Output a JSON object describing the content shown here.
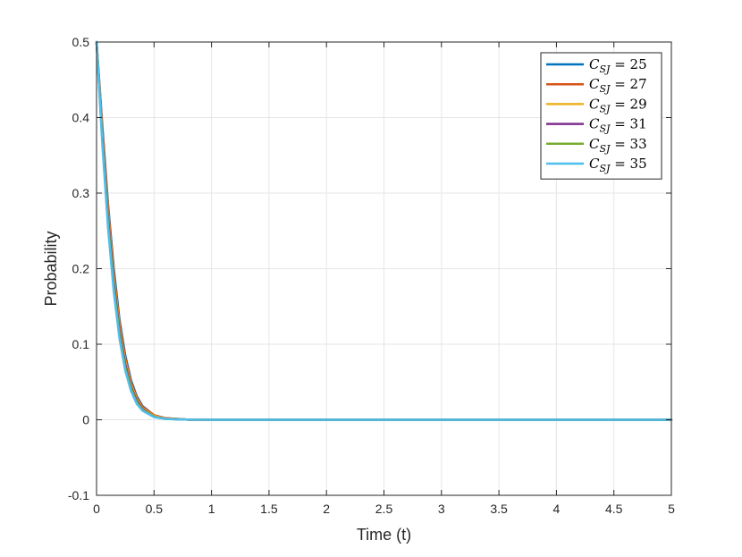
{
  "chart_data": {
    "type": "line",
    "title": "",
    "xlabel": "Time (t)",
    "ylabel": "Probability",
    "xlim": [
      0,
      5
    ],
    "ylim": [
      -0.1,
      0.5
    ],
    "xticks": [
      0,
      0.5,
      1,
      1.5,
      2,
      2.5,
      3,
      3.5,
      4,
      4.5,
      5
    ],
    "xtick_labels": [
      "0",
      "0.5",
      "1",
      "1.5",
      "2",
      "2.5",
      "3",
      "3.5",
      "4",
      "4.5",
      "5"
    ],
    "yticks": [
      -0.1,
      0,
      0.1,
      0.2,
      0.3,
      0.4,
      0.5
    ],
    "ytick_labels": [
      "-0.1",
      "0",
      "0.1",
      "0.2",
      "0.3",
      "0.4",
      "0.5"
    ],
    "grid": true,
    "legend_position": "top-right",
    "series": [
      {
        "name": "C_SJ = 25",
        "name_main": "C",
        "name_sub": "SJ",
        "name_rest": " = 25",
        "color": "#0072BD",
        "x": [
          0,
          0.05,
          0.1,
          0.15,
          0.2,
          0.25,
          0.3,
          0.35,
          0.4,
          0.5,
          0.6,
          0.8,
          1,
          2,
          3,
          4,
          5
        ],
        "y": [
          0.5,
          0.39,
          0.285,
          0.2,
          0.132,
          0.085,
          0.052,
          0.031,
          0.018,
          0.006,
          0.002,
          0.0002,
          0,
          0,
          0,
          0,
          0
        ]
      },
      {
        "name": "C_SJ = 27",
        "name_main": "C",
        "name_sub": "SJ",
        "name_rest": " = 27",
        "color": "#D95319",
        "x": [
          0,
          0.05,
          0.1,
          0.15,
          0.2,
          0.25,
          0.3,
          0.35,
          0.4,
          0.5,
          0.6,
          0.8,
          1,
          2,
          3,
          4,
          5
        ],
        "y": [
          0.5,
          0.385,
          0.28,
          0.193,
          0.127,
          0.081,
          0.049,
          0.029,
          0.017,
          0.006,
          0.002,
          0.0002,
          0,
          0,
          0,
          0,
          0
        ]
      },
      {
        "name": "C_SJ = 29",
        "name_main": "C",
        "name_sub": "SJ",
        "name_rest": " = 29",
        "color": "#EDB120",
        "x": [
          0,
          0.05,
          0.1,
          0.15,
          0.2,
          0.25,
          0.3,
          0.35,
          0.4,
          0.5,
          0.6,
          0.8,
          1,
          2,
          3,
          4,
          5
        ],
        "y": [
          0.5,
          0.38,
          0.273,
          0.187,
          0.122,
          0.077,
          0.046,
          0.027,
          0.015,
          0.005,
          0.0015,
          0.0001,
          0,
          0,
          0,
          0,
          0
        ]
      },
      {
        "name": "C_SJ = 31",
        "name_main": "C",
        "name_sub": "SJ",
        "name_rest": " = 31",
        "color": "#7E2F8E",
        "x": [
          0,
          0.05,
          0.1,
          0.15,
          0.2,
          0.25,
          0.3,
          0.35,
          0.4,
          0.5,
          0.6,
          0.8,
          1,
          2,
          3,
          4,
          5
        ],
        "y": [
          0.5,
          0.375,
          0.267,
          0.181,
          0.117,
          0.073,
          0.043,
          0.025,
          0.014,
          0.004,
          0.0012,
          0.0001,
          0,
          0,
          0,
          0,
          0
        ]
      },
      {
        "name": "C_SJ = 33",
        "name_main": "C",
        "name_sub": "SJ",
        "name_rest": " = 33",
        "color": "#77AC30",
        "x": [
          0,
          0.05,
          0.1,
          0.15,
          0.2,
          0.25,
          0.3,
          0.35,
          0.4,
          0.5,
          0.6,
          0.8,
          1,
          2,
          3,
          4,
          5
        ],
        "y": [
          0.5,
          0.37,
          0.26,
          0.175,
          0.112,
          0.069,
          0.041,
          0.023,
          0.013,
          0.004,
          0.001,
          0.0001,
          0,
          0,
          0,
          0,
          0
        ]
      },
      {
        "name": "C_SJ = 35",
        "name_main": "C",
        "name_sub": "SJ",
        "name_rest": " = 35",
        "color": "#4DBEEE",
        "x": [
          0,
          0.05,
          0.1,
          0.15,
          0.2,
          0.25,
          0.3,
          0.35,
          0.4,
          0.5,
          0.6,
          0.8,
          1,
          2,
          3,
          4,
          5
        ],
        "y": [
          0.5,
          0.365,
          0.254,
          0.169,
          0.107,
          0.065,
          0.038,
          0.021,
          0.012,
          0.0035,
          0.001,
          0.0001,
          0,
          0,
          0,
          0,
          0
        ]
      }
    ]
  }
}
